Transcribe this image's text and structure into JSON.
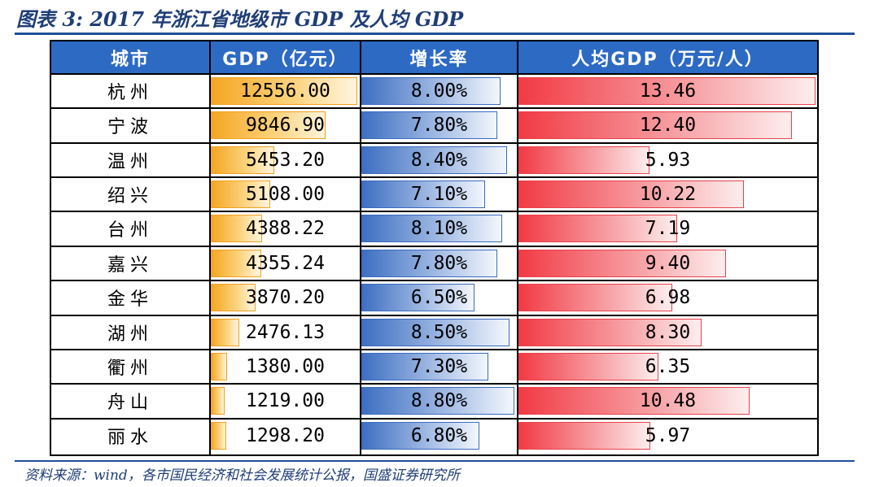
{
  "figure": {
    "title": "图表 3: 2017 年浙江省地级市 GDP 及人均 GDP",
    "source": "资料来源：wind，各市国民经济和社会发展统计公报，国盛证券研究所"
  },
  "chart_data": {
    "type": "table",
    "title": "2017 年浙江省地级市 GDP 及人均 GDP",
    "columns": [
      "城市",
      "GDP（亿元）",
      "增长率",
      "人均GDP（万元/人）"
    ],
    "rows": [
      {
        "city": "杭州",
        "gdp": 12556.0,
        "gdp_text": "12556.00",
        "growth": 8.0,
        "growth_text": "8.00%",
        "per_capita": 13.46,
        "per_capita_text": "13.46"
      },
      {
        "city": "宁波",
        "gdp": 9846.9,
        "gdp_text": "9846.90",
        "growth": 7.8,
        "growth_text": "7.80%",
        "per_capita": 12.4,
        "per_capita_text": "12.40"
      },
      {
        "city": "温州",
        "gdp": 5453.2,
        "gdp_text": "5453.20",
        "growth": 8.4,
        "growth_text": "8.40%",
        "per_capita": 5.93,
        "per_capita_text": "5.93"
      },
      {
        "city": "绍兴",
        "gdp": 5108.0,
        "gdp_text": "5108.00",
        "growth": 7.1,
        "growth_text": "7.10%",
        "per_capita": 10.22,
        "per_capita_text": "10.22"
      },
      {
        "city": "台州",
        "gdp": 4388.22,
        "gdp_text": "4388.22",
        "growth": 8.1,
        "growth_text": "8.10%",
        "per_capita": 7.19,
        "per_capita_text": "7.19"
      },
      {
        "city": "嘉兴",
        "gdp": 4355.24,
        "gdp_text": "4355.24",
        "growth": 7.8,
        "growth_text": "7.80%",
        "per_capita": 9.4,
        "per_capita_text": "9.40"
      },
      {
        "city": "金华",
        "gdp": 3870.2,
        "gdp_text": "3870.20",
        "growth": 6.5,
        "growth_text": "6.50%",
        "per_capita": 6.98,
        "per_capita_text": "6.98"
      },
      {
        "city": "湖州",
        "gdp": 2476.13,
        "gdp_text": "2476.13",
        "growth": 8.5,
        "growth_text": "8.50%",
        "per_capita": 8.3,
        "per_capita_text": "8.30"
      },
      {
        "city": "衢州",
        "gdp": 1380.0,
        "gdp_text": "1380.00",
        "growth": 7.3,
        "growth_text": "7.30%",
        "per_capita": 6.35,
        "per_capita_text": "6.35"
      },
      {
        "city": "舟山",
        "gdp": 1219.0,
        "gdp_text": "1219.00",
        "growth": 8.8,
        "growth_text": "8.80%",
        "per_capita": 10.48,
        "per_capita_text": "10.48"
      },
      {
        "city": "丽水",
        "gdp": 1298.2,
        "gdp_text": "1298.20",
        "growth": 6.8,
        "growth_text": "6.80%",
        "per_capita": 5.97,
        "per_capita_text": "5.97"
      }
    ],
    "colors": {
      "header": "#2c6ac4",
      "gdp_bar": "#f5a623",
      "growth_bar": "#3d6fc2",
      "per_capita_bar": "#f23a44",
      "title": "#1f3e77"
    }
  }
}
